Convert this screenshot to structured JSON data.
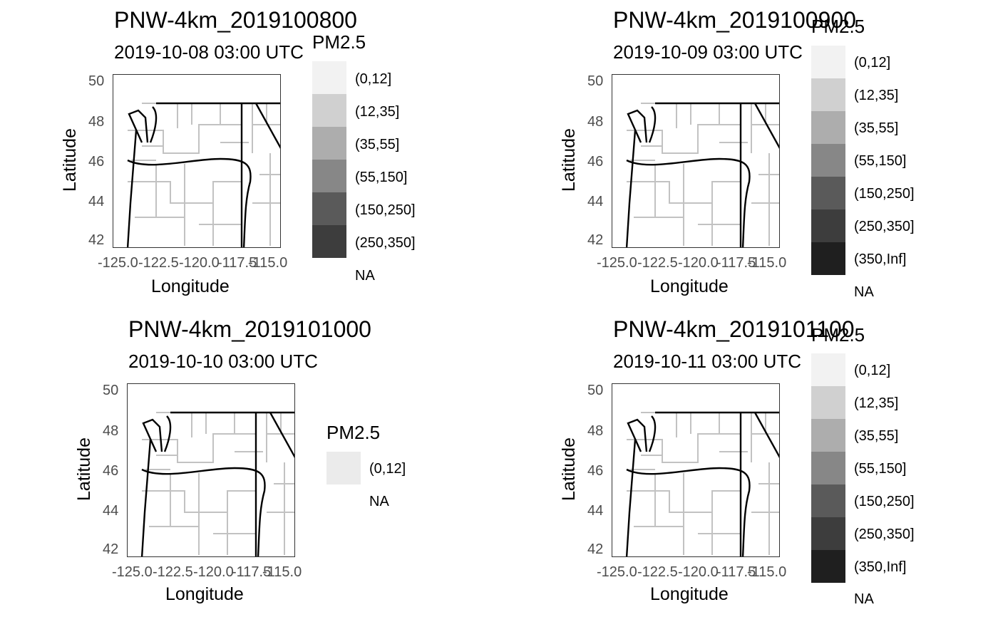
{
  "legend_colors": [
    "#f2f2f2",
    "#d0d0d0",
    "#adadad",
    "#878787",
    "#5a5a5a",
    "#3d3d3d",
    "#1f1f1f"
  ],
  "axis": {
    "x_title": "Longitude",
    "y_title": "Latitude",
    "x_ticks": [
      "-125.0",
      "-122.5",
      "-120.0",
      "-117.5",
      "-115.0"
    ],
    "y_ticks": [
      "50",
      "48",
      "46",
      "44",
      "42"
    ]
  },
  "panels": [
    {
      "title": "PNW-4km_2019100800",
      "subtitle": "2019-10-08 03:00 UTC",
      "legend": {
        "title": "PM2.5",
        "na_label": "NA",
        "items": [
          "(0,12]",
          "(12,35]",
          "(35,55]",
          "(55,150]",
          "(150,250]",
          "(250,350]"
        ]
      }
    },
    {
      "title": "PNW-4km_2019100900",
      "subtitle": "2019-10-09 03:00 UTC",
      "legend": {
        "title": "PM2.5",
        "na_label": "NA",
        "items": [
          "(0,12]",
          "(12,35]",
          "(35,55]",
          "(55,150]",
          "(150,250]",
          "(250,350]",
          "(350,Inf]"
        ]
      }
    },
    {
      "title": "PNW-4km_2019101000",
      "subtitle": "2019-10-10 03:00 UTC",
      "legend": {
        "title": "PM2.5",
        "na_label": "NA",
        "items": [
          "(0,12]"
        ]
      }
    },
    {
      "title": "PNW-4km_2019101100",
      "subtitle": "2019-10-11 03:00 UTC",
      "legend": {
        "title": "PM2.5",
        "na_label": "NA",
        "items": [
          "(0,12]",
          "(12,35]",
          "(35,55]",
          "(55,150]",
          "(150,250]",
          "(250,350]",
          "(350,Inf]"
        ]
      }
    }
  ]
}
